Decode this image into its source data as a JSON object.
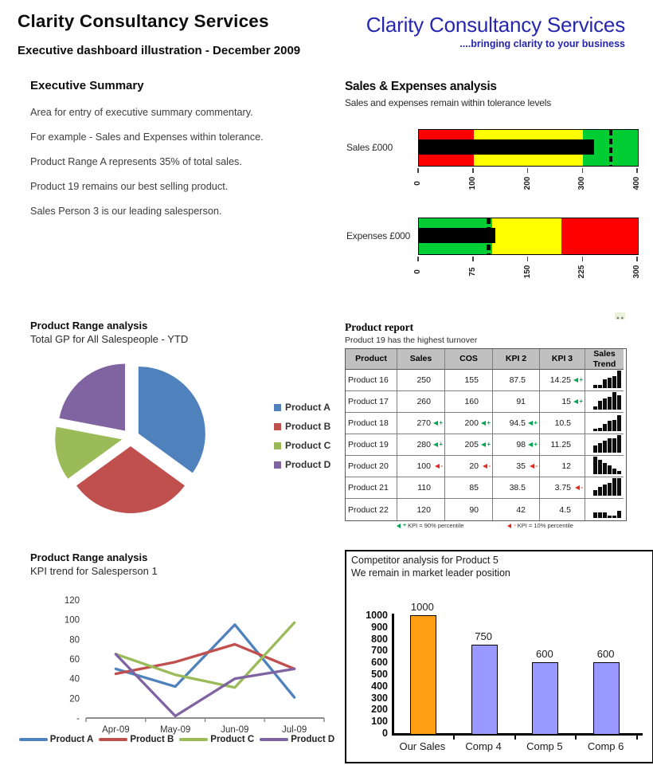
{
  "page": {
    "title": "Clarity Consultancy Services",
    "subtitle": "Executive dashboard illustration - December 2009"
  },
  "logo": {
    "name": "Clarity Consultancy Services",
    "tagline": "....bringing clarity to your business",
    "color": "#2626AE"
  },
  "executive_summary": {
    "heading": "Executive Summary",
    "paragraphs": [
      "Area for entry of executive summary commentary.",
      "For example - Sales and Expenses within tolerance.",
      "Product Range A represents 35% of total sales.",
      "Product 19 remains our best selling product.",
      "Sales Person 3 is our leading salesperson."
    ]
  },
  "sales_expenses": {
    "heading": "Sales & Expenses analysis",
    "subtitle": "Sales and expenses remain within tolerance levels"
  },
  "product_report": {
    "title": "Product report",
    "subtitle": "Product 19 has the highest turnover",
    "columns": [
      "Product",
      "Sales",
      "COS",
      "KPI 2",
      "KPI 3",
      "Sales Trend"
    ],
    "rows": [
      {
        "product": "Product 16",
        "sales": "250",
        "sales_flag": "",
        "cos": "155",
        "cos_flag": "",
        "kpi2": "87.5",
        "kpi2_flag": "",
        "kpi3": "14.25",
        "kpi3_flag": "up",
        "trend": [
          0.8,
          0.8,
          2.8,
          3.5,
          4.0,
          6.0
        ]
      },
      {
        "product": "Product 17",
        "sales": "260",
        "sales_flag": "",
        "cos": "160",
        "cos_flag": "",
        "kpi2": "91",
        "kpi2_flag": "",
        "kpi3": "15",
        "kpi3_flag": "up",
        "trend": [
          0.8,
          2.8,
          3.6,
          4.4,
          6.0,
          4.8
        ]
      },
      {
        "product": "Product 18",
        "sales": "270",
        "sales_flag": "up",
        "cos": "200",
        "cos_flag": "up",
        "kpi2": "94.5",
        "kpi2_flag": "up",
        "kpi3": "10.5",
        "kpi3_flag": "",
        "trend": [
          0.6,
          1.0,
          2.4,
          3.4,
          3.8,
          5.4
        ]
      },
      {
        "product": "Product 19",
        "sales": "280",
        "sales_flag": "up",
        "cos": "205",
        "cos_flag": "up",
        "kpi2": "98",
        "kpi2_flag": "up",
        "kpi3": "11.25",
        "kpi3_flag": "",
        "trend": [
          2.4,
          3.2,
          4.0,
          4.8,
          4.8,
          6.0
        ]
      },
      {
        "product": "Product 20",
        "sales": "100",
        "sales_flag": "down",
        "cos": "20",
        "cos_flag": "down",
        "kpi2": "35",
        "kpi2_flag": "down",
        "kpi3": "12",
        "kpi3_flag": "",
        "trend": [
          6.0,
          4.8,
          3.8,
          2.8,
          1.8,
          0.8
        ]
      },
      {
        "product": "Product 21",
        "sales": "110",
        "sales_flag": "",
        "cos": "85",
        "cos_flag": "",
        "kpi2": "38.5",
        "kpi2_flag": "",
        "kpi3": "3.75",
        "kpi3_flag": "down",
        "trend": [
          1.8,
          2.8,
          3.6,
          4.4,
          6.0,
          6.0
        ]
      },
      {
        "product": "Product 22",
        "sales": "120",
        "sales_flag": "",
        "cos": "90",
        "cos_flag": "",
        "kpi2": "42",
        "kpi2_flag": "",
        "kpi3": "4.5",
        "kpi3_flag": "",
        "trend": [
          1.6,
          1.6,
          1.6,
          0.6,
          0.6,
          2.2
        ]
      }
    ],
    "flag_legend": {
      "up_text": "KPI = 90% percentile",
      "down_text": "KPI = 10% percentile",
      "up_color": "#00A651",
      "down_color": "#E02A20"
    }
  },
  "chart_data": [
    {
      "type": "bullet",
      "label": "Sales £000",
      "max": 400,
      "ticks": [
        0,
        100,
        200,
        300,
        400
      ],
      "zones": [
        {
          "color": "#FF0000",
          "from": 0,
          "to": 100
        },
        {
          "color": "#FFFF00",
          "from": 100,
          "to": 300
        },
        {
          "color": "#00CC33",
          "from": 300,
          "to": 400
        }
      ],
      "measure": 320,
      "target": 350
    },
    {
      "type": "bullet",
      "label": "Expenses £000",
      "max": 300,
      "ticks": [
        0,
        75,
        150,
        225,
        300
      ],
      "zones": [
        {
          "color": "#00CC33",
          "from": 0,
          "to": 100
        },
        {
          "color": "#FFFF00",
          "from": 100,
          "to": 195
        },
        {
          "color": "#FF0000",
          "from": 195,
          "to": 300
        }
      ],
      "measure": 105,
      "target": 95
    },
    {
      "type": "pie",
      "title": "Product Range analysis",
      "subtitle": "Total GP for All Salespeople - YTD",
      "labels": [
        "Product A",
        "Product B",
        "Product C",
        "Product D"
      ],
      "values": [
        35,
        30,
        13,
        22
      ],
      "colors": [
        "#4F81BD",
        "#C0504D",
        "#9BBB59",
        "#8064A2"
      ],
      "exploded": true,
      "legend_position": "right"
    },
    {
      "type": "line",
      "title": "Product Range analysis",
      "subtitle": "KPI trend for Salesperson 1",
      "x": [
        "Apr-09",
        "May-09",
        "Jun-09",
        "Jul-09"
      ],
      "series": [
        {
          "name": "Product A",
          "color": "#4F81BD",
          "values": [
            50,
            32,
            95,
            21
          ]
        },
        {
          "name": "Product B",
          "color": "#C0504D",
          "values": [
            45,
            57,
            75,
            50
          ]
        },
        {
          "name": "Product C",
          "color": "#9BBB59",
          "values": [
            65,
            44,
            31,
            97
          ]
        },
        {
          "name": "Product D",
          "color": "#8064A2",
          "values": [
            65,
            2,
            40,
            50
          ]
        }
      ],
      "ylim": [
        0,
        120
      ],
      "yticks": [
        "120",
        "100",
        "80",
        "60",
        "40",
        "20",
        "-"
      ],
      "legend_position": "bottom"
    },
    {
      "type": "bar",
      "title_line1": "Competitor analysis for Product 5",
      "title_line2": "We remain in market leader position",
      "categories": [
        "Our Sales",
        "Comp 4",
        "Comp 5",
        "Comp 6"
      ],
      "values": [
        1000,
        750,
        600,
        600
      ],
      "data_labels": [
        "1000",
        "750",
        "600",
        "600"
      ],
      "bar_colors": [
        "#FFA014",
        "#9999FF",
        "#9999FF",
        "#9999FF"
      ],
      "ylim": [
        0,
        1000
      ],
      "ytick_step": 100
    }
  ]
}
